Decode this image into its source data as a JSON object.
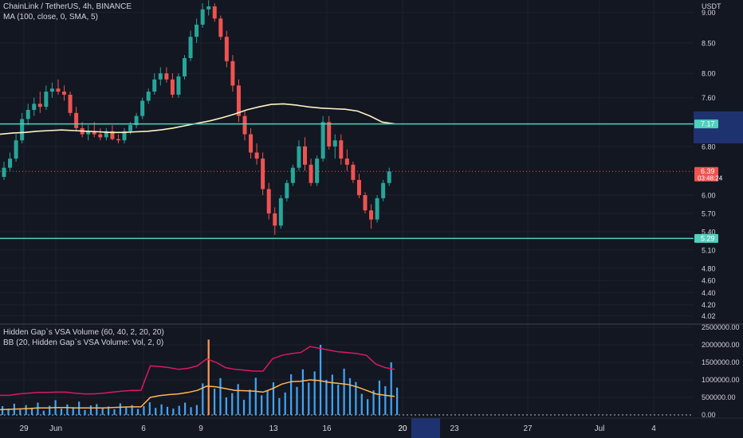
{
  "legend": {
    "symbol": "ChainLink / TetherUS, 4h, BINANCE",
    "ma": "MA (100, close, 0, SMA, 5)",
    "vsa": "Hidden Gap`s VSA Volume (60, 40, 2, 20, 20)",
    "bb": "BB (20, Hidden Gap`s VSA Volume: Vol, 2, 0)"
  },
  "price_axis": {
    "currency": "USDT",
    "ticks": [
      "9.00",
      "8.50",
      "8.00",
      "7.60",
      "6.80",
      "6.00",
      "5.70",
      "5.40",
      "5.10",
      "4.80",
      "4.60",
      "4.40",
      "4.20",
      "4.02"
    ],
    "badges": {
      "upper": "7.17",
      "current": "6.39",
      "countdown": "03:48:24",
      "lower": "5.29"
    }
  },
  "volume_axis": {
    "ticks": [
      "2500000.00",
      "2000000.00",
      "1500000.00",
      "1000000.00",
      "500000.00",
      "0.00"
    ]
  },
  "time_axis": {
    "labels": [
      "29",
      "Jun",
      "6",
      "9",
      "13",
      "16",
      "20",
      "23",
      "27",
      "Jul",
      "4"
    ],
    "highlight": "20"
  },
  "colors": {
    "background": "#131722",
    "up": "#26a69a",
    "down": "#ef5350",
    "ma": "#fff3c4",
    "hline": "#4fd1bd",
    "bb_upper": "#d81b60",
    "bb_basis": "#ffb74d",
    "vol_blue": "#42a5f5",
    "vol_orange": "#ff9a57",
    "highlight": "#1f3270"
  },
  "chart_data": [
    {
      "type": "candlestick",
      "title": "ChainLink / TetherUS, 4h, BINANCE",
      "ylim": [
        4.0,
        9.2
      ],
      "horizontal_lines": [
        7.17,
        5.29
      ],
      "candles": [
        [
          6.3,
          6.55,
          6.25,
          6.45
        ],
        [
          6.45,
          6.7,
          6.4,
          6.6
        ],
        [
          6.6,
          7.0,
          6.55,
          6.9
        ],
        [
          6.9,
          7.35,
          6.85,
          7.25
        ],
        [
          7.25,
          7.5,
          7.15,
          7.4
        ],
        [
          7.4,
          7.6,
          7.3,
          7.5
        ],
        [
          7.5,
          7.7,
          7.35,
          7.45
        ],
        [
          7.45,
          7.8,
          7.4,
          7.7
        ],
        [
          7.7,
          7.85,
          7.6,
          7.75
        ],
        [
          7.75,
          7.9,
          7.65,
          7.7
        ],
        [
          7.7,
          7.8,
          7.55,
          7.65
        ],
        [
          7.65,
          7.7,
          7.3,
          7.35
        ],
        [
          7.35,
          7.45,
          7.05,
          7.1
        ],
        [
          7.1,
          7.2,
          6.95,
          7.0
        ],
        [
          7.0,
          7.15,
          6.9,
          7.05
        ],
        [
          7.05,
          7.2,
          6.95,
          7.0
        ],
        [
          7.0,
          7.1,
          6.9,
          6.95
        ],
        [
          6.95,
          7.1,
          6.9,
          7.05
        ],
        [
          7.05,
          7.15,
          6.9,
          6.92
        ],
        [
          6.92,
          7.0,
          6.85,
          6.9
        ],
        [
          6.9,
          7.1,
          6.85,
          7.05
        ],
        [
          7.05,
          7.2,
          7.0,
          7.15
        ],
        [
          7.15,
          7.35,
          7.1,
          7.3
        ],
        [
          7.3,
          7.6,
          7.25,
          7.55
        ],
        [
          7.55,
          7.75,
          7.5,
          7.7
        ],
        [
          7.7,
          8.0,
          7.65,
          7.9
        ],
        [
          7.9,
          8.1,
          7.8,
          8.0
        ],
        [
          8.0,
          8.1,
          7.85,
          7.9
        ],
        [
          7.9,
          8.0,
          7.6,
          7.65
        ],
        [
          7.65,
          8.0,
          7.6,
          7.95
        ],
        [
          7.95,
          8.3,
          7.9,
          8.25
        ],
        [
          8.25,
          8.7,
          8.2,
          8.6
        ],
        [
          8.6,
          8.9,
          8.5,
          8.8
        ],
        [
          8.8,
          9.15,
          8.75,
          9.05
        ],
        [
          9.05,
          9.2,
          8.95,
          9.1
        ],
        [
          9.1,
          9.15,
          8.85,
          8.9
        ],
        [
          8.9,
          8.95,
          8.55,
          8.6
        ],
        [
          8.6,
          8.7,
          8.1,
          8.2
        ],
        [
          8.2,
          8.3,
          7.7,
          7.8
        ],
        [
          7.8,
          7.9,
          7.2,
          7.3
        ],
        [
          7.3,
          7.4,
          6.9,
          7.0
        ],
        [
          7.0,
          7.1,
          6.6,
          6.7
        ],
        [
          6.7,
          6.85,
          6.5,
          6.6
        ],
        [
          6.6,
          6.7,
          6.0,
          6.1
        ],
        [
          6.1,
          6.2,
          5.6,
          5.7
        ],
        [
          5.7,
          5.8,
          5.35,
          5.5
        ],
        [
          5.5,
          6.0,
          5.45,
          5.95
        ],
        [
          5.95,
          6.25,
          5.9,
          6.2
        ],
        [
          6.2,
          6.5,
          6.15,
          6.45
        ],
        [
          6.45,
          6.9,
          6.4,
          6.8
        ],
        [
          6.8,
          6.95,
          6.4,
          6.5
        ],
        [
          6.5,
          6.6,
          6.15,
          6.2
        ],
        [
          6.2,
          6.65,
          6.15,
          6.6
        ],
        [
          6.6,
          7.3,
          6.55,
          7.2
        ],
        [
          7.2,
          7.3,
          6.75,
          6.8
        ],
        [
          6.8,
          7.0,
          6.6,
          6.9
        ],
        [
          6.9,
          7.0,
          6.5,
          6.6
        ],
        [
          6.6,
          6.75,
          6.4,
          6.5
        ],
        [
          6.5,
          6.55,
          6.2,
          6.25
        ],
        [
          6.25,
          6.35,
          5.95,
          6.0
        ],
        [
          6.0,
          6.05,
          5.7,
          5.75
        ],
        [
          5.75,
          5.85,
          5.45,
          5.6
        ],
        [
          5.6,
          6.0,
          5.55,
          5.95
        ],
        [
          5.95,
          6.25,
          5.9,
          6.2
        ],
        [
          6.2,
          6.45,
          6.15,
          6.39
        ]
      ]
    },
    {
      "type": "line",
      "title": "MA (100, close, 0, SMA, 5)",
      "values": [
        7.0,
        7.02,
        7.03,
        7.05,
        7.06,
        7.07,
        7.06,
        7.05,
        7.04,
        7.03,
        7.03,
        7.04,
        7.05,
        7.07,
        7.1,
        7.14,
        7.18,
        7.22,
        7.27,
        7.33,
        7.4,
        7.45,
        7.49,
        7.5,
        7.48,
        7.45,
        7.43,
        7.42,
        7.41,
        7.38,
        7.3,
        7.2,
        7.17
      ]
    },
    {
      "type": "bar",
      "title": "Hidden Gap`s VSA Volume (60, 40, 2, 20, 20)",
      "ylim": [
        0,
        2500000
      ],
      "values": [
        250000,
        180000,
        320000,
        150000,
        280000,
        200000,
        350000,
        120000,
        260000,
        420000,
        180000,
        300000,
        220000,
        380000,
        140000,
        270000,
        310000,
        190000,
        240000,
        160000,
        330000,
        210000,
        280000,
        170000,
        250000,
        360000,
        200000,
        300000,
        230000,
        180000,
        260000,
        350000,
        220000,
        280000,
        900000,
        2150000,
        750000,
        1050000,
        500000,
        620000,
        880000,
        430000,
        720000,
        1060000,
        560000,
        700000,
        930000,
        480000,
        640000,
        1160000,
        800000,
        1300000,
        920000,
        1240000,
        2000000,
        1000000,
        1150000,
        860000,
        1320000,
        1050000,
        940000,
        600000,
        450000,
        700000,
        980000,
        820000,
        1500000,
        780000
      ],
      "highlighted": [
        35,
        54
      ]
    },
    {
      "type": "line",
      "title": "BB (20, Hidden Gap`s VSA Volume: Vol, 2, 0)",
      "upper": [
        560000,
        560000,
        600000,
        620000,
        640000,
        640000,
        650000,
        650000,
        620000,
        600000,
        600000,
        620000,
        650000,
        680000,
        700000,
        700000,
        1400000,
        1380000,
        1350000,
        1300000,
        1330000,
        1400000,
        1600000,
        1500000,
        1350000,
        1300000,
        1280000,
        1250000,
        1250000,
        1600000,
        1700000,
        1750000,
        1780000,
        1950000,
        1900000,
        1850000,
        1800000,
        1780000,
        1750000,
        1700000,
        1450000,
        1350000,
        1300000
      ],
      "basis": [
        150000,
        160000,
        170000,
        180000,
        200000,
        200000,
        210000,
        210000,
        200000,
        200000,
        200000,
        200000,
        210000,
        220000,
        230000,
        230000,
        500000,
        550000,
        580000,
        600000,
        640000,
        700000,
        820000,
        800000,
        750000,
        700000,
        690000,
        680000,
        650000,
        750000,
        880000,
        950000,
        960000,
        1000000,
        980000,
        930000,
        900000,
        870000,
        800000,
        700000,
        600000,
        560000,
        530000
      ]
    }
  ]
}
